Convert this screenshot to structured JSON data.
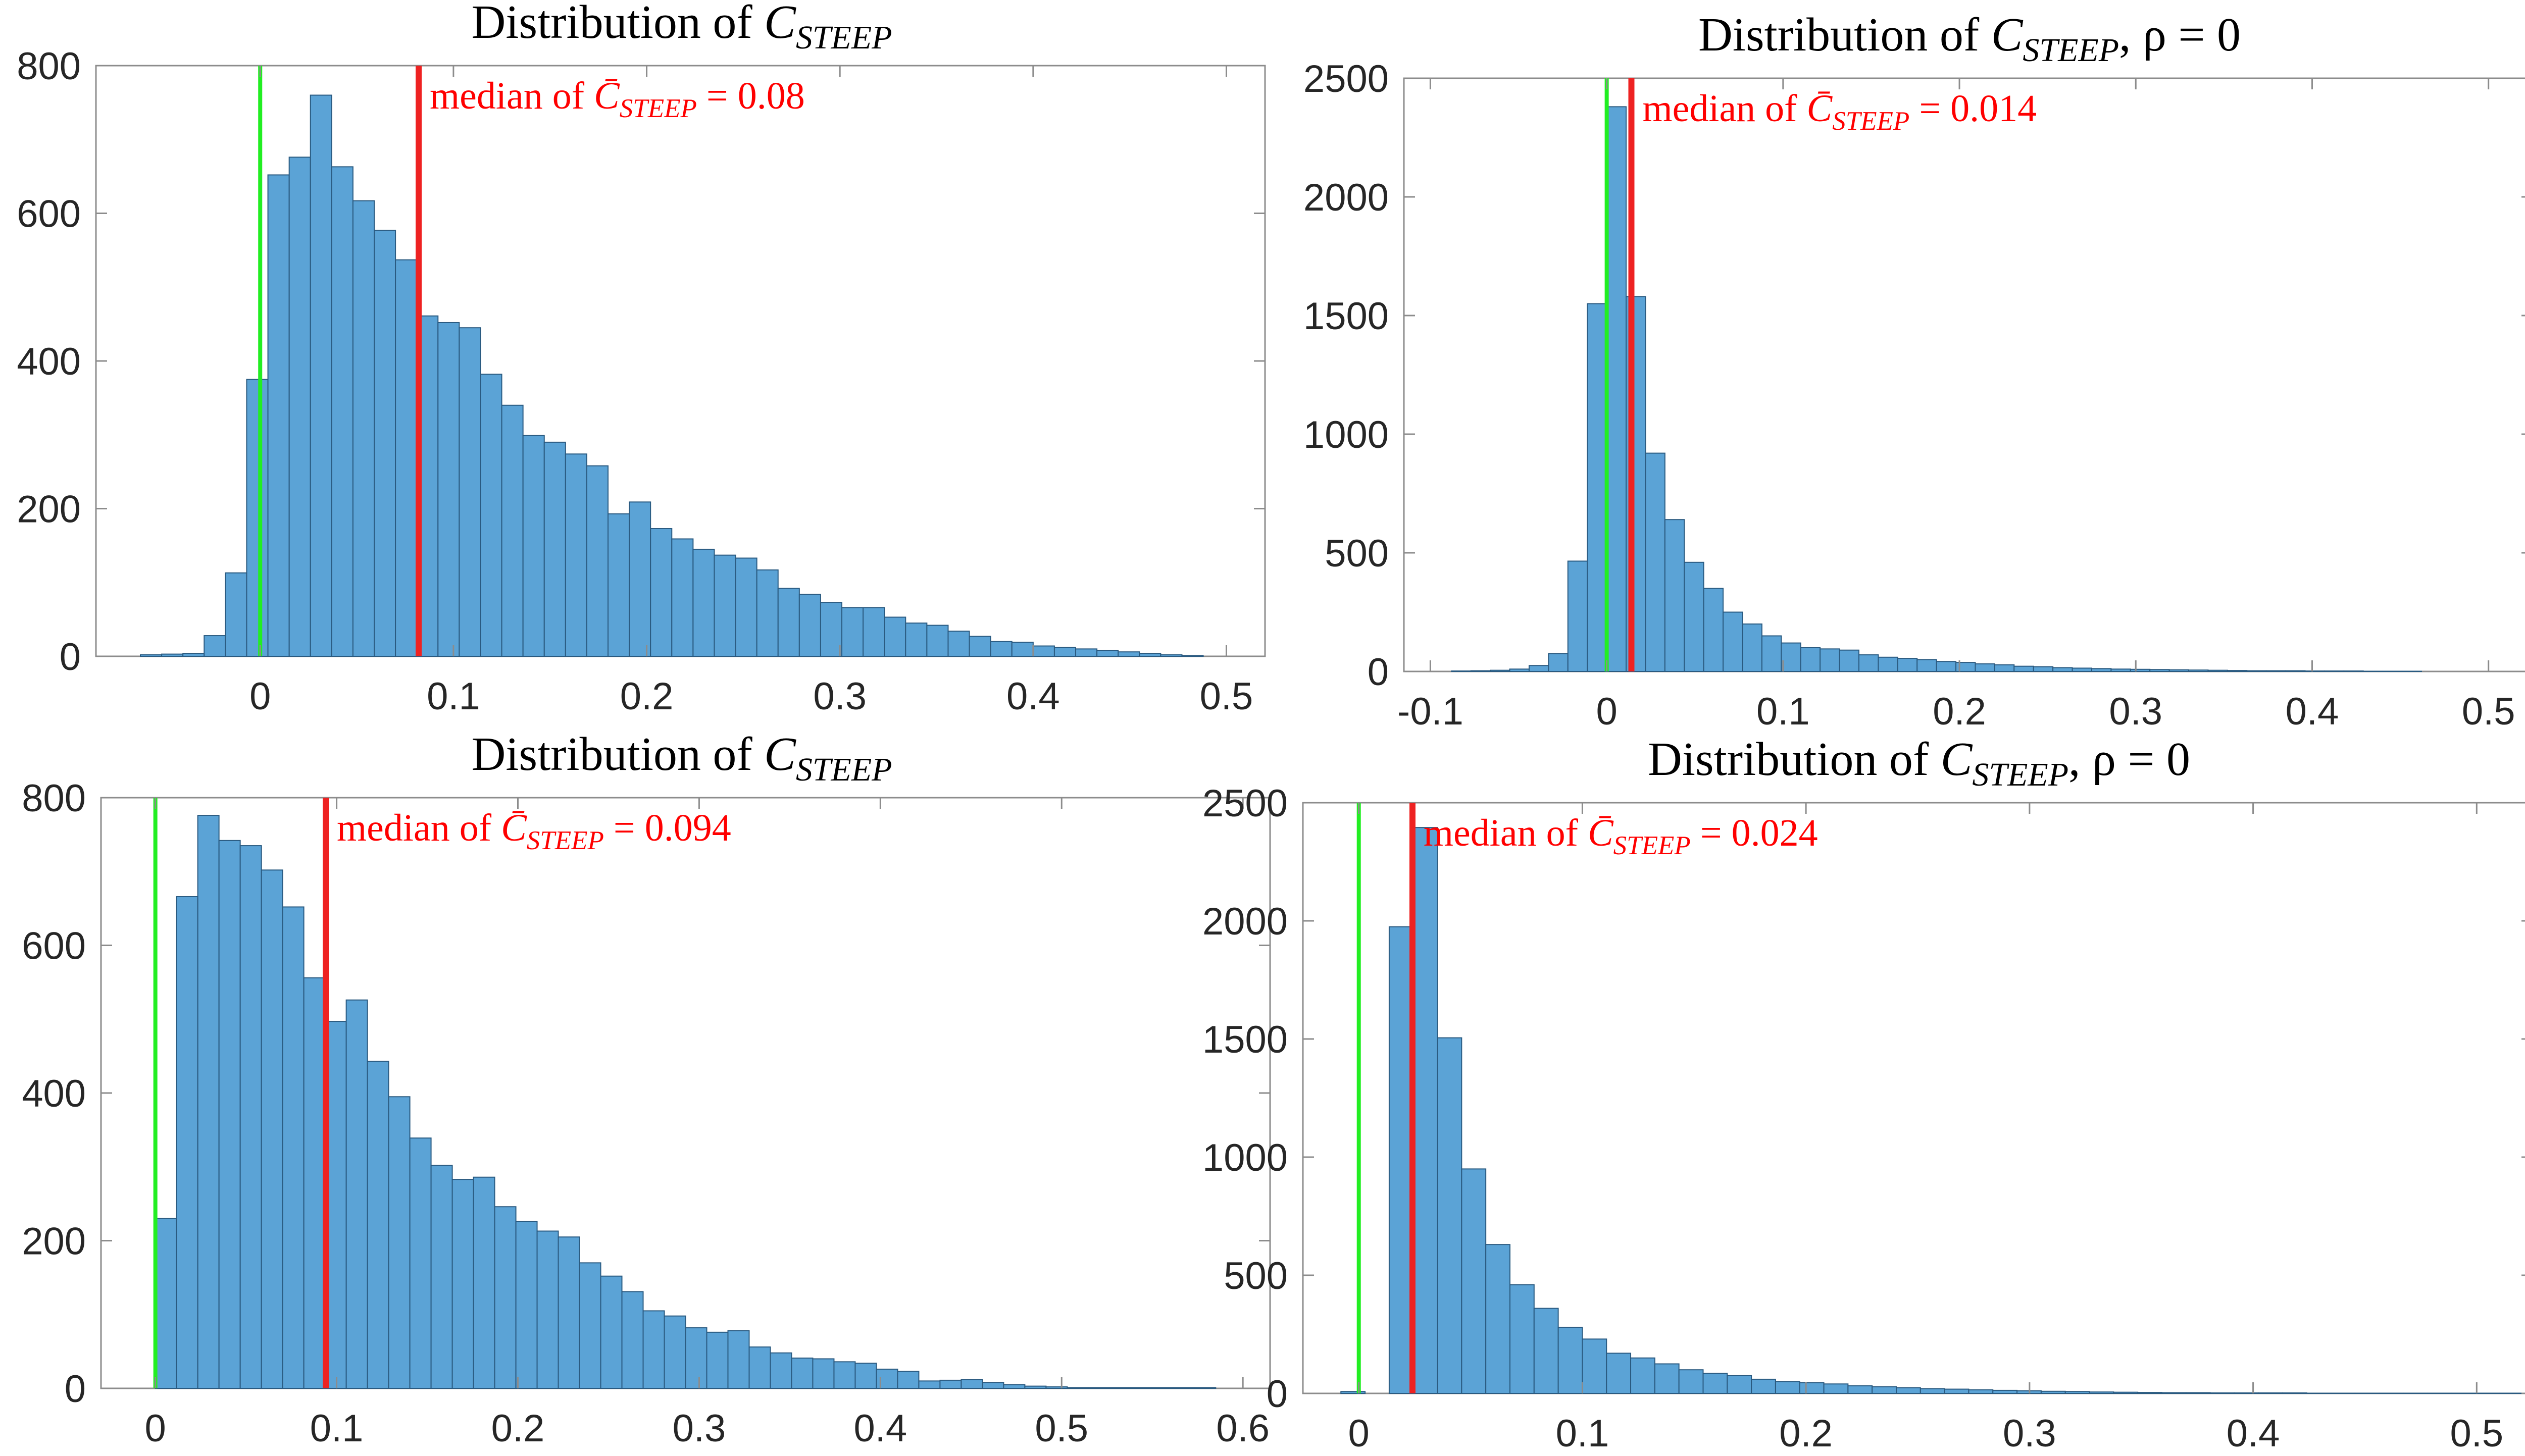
{
  "colors": {
    "bar_fill": "#5ba3d6",
    "bar_edge": "#2a5a80",
    "zero_line": "#22ee22",
    "median_line": "#ee2222",
    "axis": "#8c8c8c",
    "text": "#262626",
    "annotation": "#ff0000"
  },
  "chart_data": [
    {
      "type": "bar",
      "title": {
        "prefix": "Distribution of ",
        "math": "C",
        "sub": "STEEP",
        "suffix": ""
      },
      "annotation": {
        "prefix": "median of ",
        "math": "C̄",
        "sub": "STEEP",
        "suffix": " = 0.08"
      },
      "median": 0.082,
      "zero_line": 0,
      "xlim": [
        -0.085,
        0.52
      ],
      "ylim": [
        0,
        800
      ],
      "xticks": [
        0,
        0.1,
        0.2,
        0.3,
        0.4,
        0.5
      ],
      "xticklabels": [
        "0",
        "0.1",
        "0.2",
        "0.3",
        "0.4",
        "0.5"
      ],
      "yticks": [
        0,
        200,
        400,
        600,
        800
      ],
      "yticklabels": [
        "0",
        "200",
        "400",
        "600",
        "800"
      ],
      "bins": {
        "start": -0.062,
        "width": 0.011
      },
      "values": [
        2,
        3,
        4,
        28,
        113,
        375,
        652,
        676,
        760,
        663,
        617,
        577,
        537,
        461,
        452,
        445,
        382,
        340,
        299,
        290,
        274,
        258,
        193,
        209,
        173,
        159,
        145,
        137,
        133,
        117,
        92,
        84,
        73,
        66,
        66,
        53,
        45,
        42,
        34,
        27,
        20,
        19,
        14,
        12,
        10,
        8,
        6,
        4,
        2,
        1
      ]
    },
    {
      "type": "bar",
      "title": {
        "prefix": "Distribution of ",
        "math": "C",
        "sub": "STEEP",
        "suffix": ", ρ = 0"
      },
      "annotation": {
        "prefix": "median of ",
        "math": "C̄",
        "sub": "STEEP",
        "suffix": " = 0.014"
      },
      "median": 0.014,
      "zero_line": 0,
      "xlim": [
        -0.115,
        0.525
      ],
      "ylim": [
        0,
        2500
      ],
      "xticks": [
        -0.1,
        0,
        0.1,
        0.2,
        0.3,
        0.4,
        0.5
      ],
      "xticklabels": [
        "-0.1",
        "0",
        "0.1",
        "0.2",
        "0.3",
        "0.4",
        "0.5"
      ],
      "yticks": [
        0,
        500,
        1000,
        1500,
        2000,
        2500
      ],
      "yticklabels": [
        "0",
        "500",
        "1000",
        "1500",
        "2000",
        "2500"
      ],
      "bins": {
        "start": -0.088,
        "width": 0.011
      },
      "values": [
        2,
        3,
        5,
        10,
        25,
        75,
        465,
        1550,
        2380,
        1580,
        920,
        640,
        460,
        350,
        250,
        200,
        150,
        120,
        100,
        95,
        90,
        70,
        60,
        55,
        50,
        42,
        38,
        32,
        28,
        22,
        20,
        16,
        14,
        12,
        10,
        9,
        8,
        7,
        6,
        5,
        4,
        3,
        3,
        3,
        2,
        2,
        2,
        1,
        1,
        1
      ]
    },
    {
      "type": "bar",
      "title": {
        "prefix": "Distribution of ",
        "math": "C",
        "sub": "STEEP",
        "suffix": ""
      },
      "annotation": {
        "prefix": "median of ",
        "math": "C̄",
        "sub": "STEEP",
        "suffix": " = 0.094"
      },
      "median": 0.094,
      "zero_line": 0,
      "xlim": [
        -0.03,
        0.615
      ],
      "ylim": [
        0,
        800
      ],
      "xticks": [
        0,
        0.1,
        0.2,
        0.3,
        0.4,
        0.5,
        0.6
      ],
      "xticklabels": [
        "0",
        "0.1",
        "0.2",
        "0.3",
        "0.4",
        "0.5",
        "0.6"
      ],
      "yticks": [
        0,
        200,
        400,
        600,
        800
      ],
      "yticklabels": [
        "0",
        "200",
        "400",
        "600",
        "800"
      ],
      "bins": {
        "start": 0,
        "width": 0.0117
      },
      "values": [
        230,
        666,
        776,
        742,
        735,
        702,
        652,
        556,
        497,
        526,
        443,
        395,
        339,
        302,
        283,
        286,
        246,
        226,
        213,
        205,
        170,
        152,
        131,
        105,
        98,
        82,
        76,
        78,
        56,
        48,
        41,
        40,
        36,
        34,
        26,
        23,
        10,
        11,
        12,
        8,
        5,
        3,
        2,
        1,
        1,
        1,
        1,
        1,
        1,
        1
      ]
    },
    {
      "type": "bar",
      "title": {
        "prefix": "Distribution of ",
        "math": "C",
        "sub": "STEEP",
        "suffix": ", ρ = 0"
      },
      "annotation": {
        "prefix": "median of ",
        "math": "C̄",
        "sub": "STEEP",
        "suffix": " = 0.024"
      },
      "median": 0.024,
      "zero_line": 0,
      "xlim": [
        -0.025,
        0.525
      ],
      "ylim": [
        0,
        2500
      ],
      "xticks": [
        0,
        0.1,
        0.2,
        0.3,
        0.4,
        0.5
      ],
      "xticklabels": [
        "0",
        "0.1",
        "0.2",
        "0.3",
        "0.4",
        "0.5"
      ],
      "yticks": [
        0,
        500,
        1000,
        1500,
        2000,
        2500
      ],
      "yticklabels": [
        "0",
        "500",
        "1000",
        "1500",
        "2000",
        "2500"
      ],
      "bins": {
        "start": -0.008,
        "width": 0.0108
      },
      "values": [
        8,
        0,
        1975,
        2395,
        1505,
        950,
        630,
        460,
        360,
        280,
        230,
        170,
        150,
        125,
        100,
        85,
        75,
        60,
        50,
        45,
        40,
        32,
        28,
        24,
        20,
        18,
        15,
        13,
        11,
        9,
        8,
        6,
        5,
        4,
        3,
        3,
        2,
        2,
        2,
        2,
        1,
        1,
        1,
        1,
        1,
        1,
        1,
        1,
        1,
        1
      ]
    }
  ]
}
